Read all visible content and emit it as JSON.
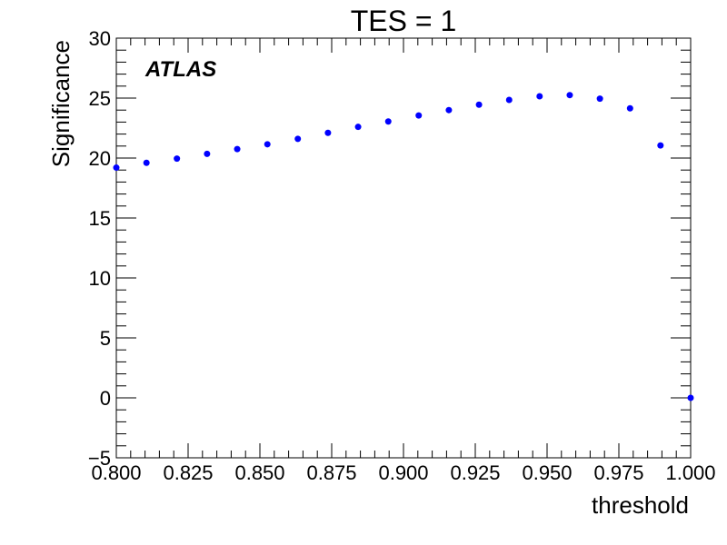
{
  "chart_data": {
    "type": "scatter",
    "title": "TES = 1",
    "xlabel": "threshold",
    "ylabel": "Significance",
    "annotation": "ATLAS",
    "xlim": [
      0.8,
      1.0
    ],
    "ylim": [
      -5,
      30
    ],
    "x_ticks": [
      0.8,
      0.825,
      0.85,
      0.875,
      0.9,
      0.925,
      0.95,
      0.975,
      1.0
    ],
    "x_tick_labels": [
      "0.800",
      "0.825",
      "0.850",
      "0.875",
      "0.900",
      "0.925",
      "0.950",
      "0.975",
      "1.000"
    ],
    "y_ticks": [
      -5,
      0,
      5,
      10,
      15,
      20,
      25,
      30
    ],
    "y_tick_labels": [
      "−5",
      "0",
      "5",
      "10",
      "15",
      "20",
      "25",
      "30"
    ],
    "grid": false,
    "marker_color": "#0000ff",
    "series": [
      {
        "name": "significance",
        "x": [
          0.8,
          0.8105,
          0.8211,
          0.8316,
          0.8421,
          0.8526,
          0.8632,
          0.8737,
          0.8842,
          0.8947,
          0.9053,
          0.9158,
          0.9263,
          0.9368,
          0.9474,
          0.9579,
          0.9684,
          0.9789,
          0.9895,
          1.0
        ],
        "y": [
          19.2,
          19.6,
          19.95,
          20.35,
          20.75,
          21.15,
          21.6,
          22.1,
          22.6,
          23.05,
          23.55,
          24.0,
          24.45,
          24.85,
          25.15,
          25.25,
          24.95,
          24.15,
          21.05,
          0.0
        ]
      }
    ]
  }
}
